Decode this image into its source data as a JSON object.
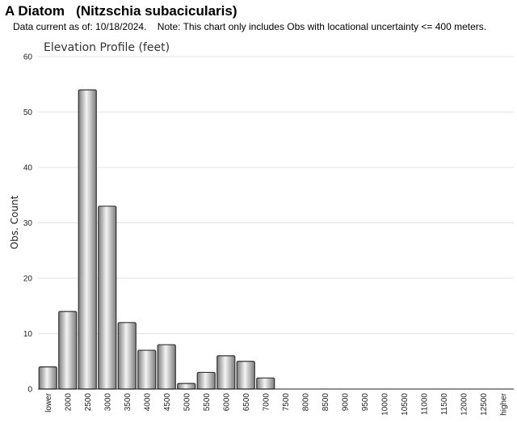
{
  "header": {
    "title": "A Diatom   (Nitzschia subacicularis)",
    "subtitle": "Data current as of: 10/18/2024.    Note: This chart only includes Obs with locational uncertainty <= 400 meters."
  },
  "chart_data": {
    "type": "bar",
    "title": "Elevation Profile (feet)",
    "xlabel": "",
    "ylabel": "Obs. Count",
    "ylim": [
      0,
      60
    ],
    "yticks": [
      0,
      10,
      20,
      30,
      40,
      50,
      60
    ],
    "grid": true,
    "categories": [
      "lower",
      "2000",
      "2500",
      "3000",
      "3500",
      "4000",
      "4500",
      "5000",
      "5500",
      "6000",
      "6500",
      "7000",
      "7500",
      "8000",
      "8500",
      "9000",
      "9500",
      "10000",
      "10500",
      "11000",
      "11500",
      "12000",
      "12500",
      "higher"
    ],
    "values": [
      4,
      14,
      54,
      33,
      12,
      7,
      8,
      1,
      3,
      6,
      5,
      2,
      0,
      0,
      0,
      0,
      0,
      0,
      0,
      0,
      0,
      0,
      0,
      0
    ],
    "colors": {
      "bar_edge": "#333333",
      "bar_light": "#f2f2f2",
      "bar_dark": "#8a8a8a",
      "grid": "#e3e3e3"
    }
  }
}
